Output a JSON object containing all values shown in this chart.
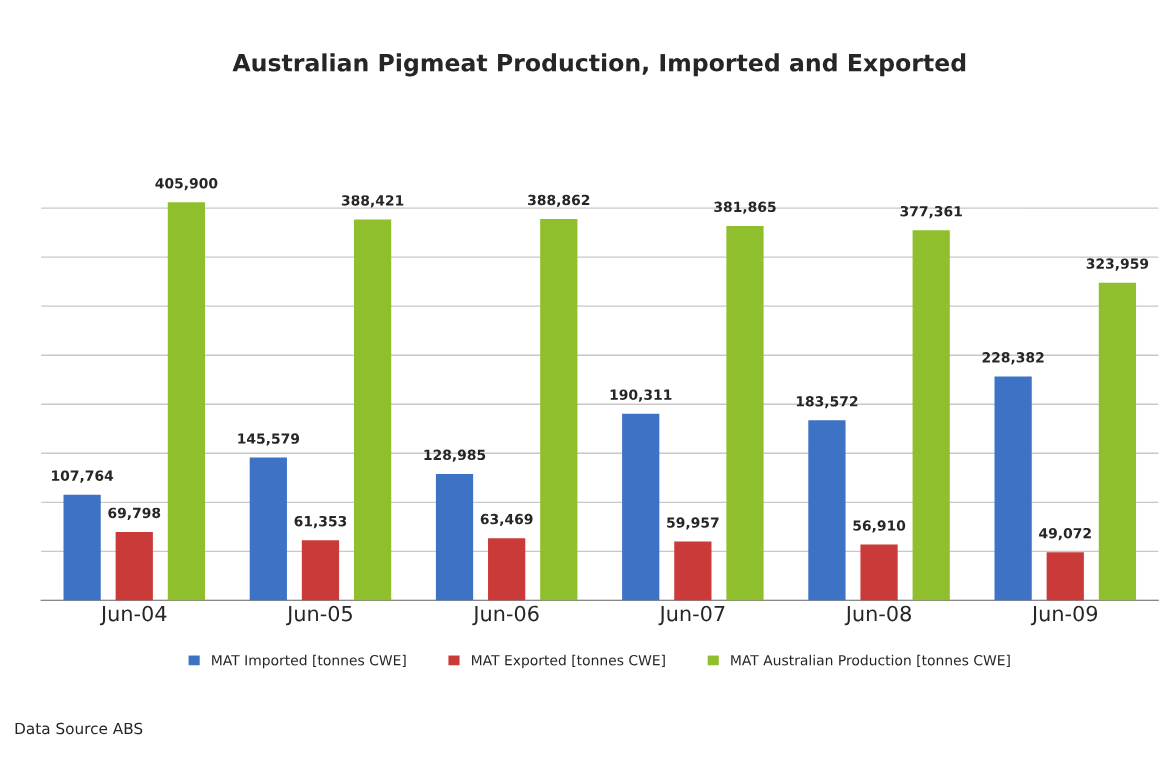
{
  "chart_data": {
    "type": "bar",
    "title": "Australian Pigmeat Production, Imported and Exported",
    "categories": [
      "Jun-04",
      "Jun-05",
      "Jun-06",
      "Jun-07",
      "Jun-08",
      "Jun-09"
    ],
    "series": [
      {
        "name": "MAT Imported [tonnes CWE]",
        "color": "#3d72c4",
        "values": [
          107764,
          145579,
          128985,
          190311,
          183572,
          228382
        ],
        "value_labels": [
          "107,764",
          "145,579",
          "128,985",
          "190,311",
          "183,572",
          "228,382"
        ]
      },
      {
        "name": "MAT Exported [tonnes CWE]",
        "color": "#c93a38",
        "values": [
          69798,
          61353,
          63469,
          59957,
          56910,
          49072
        ],
        "value_labels": [
          "69,798",
          "61,353",
          "63,469",
          "59,957",
          "56,910",
          "49,072"
        ]
      },
      {
        "name": "MAT Australian Production [tonnes CWE]",
        "color": "#8fbf2c",
        "values": [
          405900,
          388421,
          388862,
          381865,
          377361,
          323959
        ],
        "value_labels": [
          "405,900",
          "388,421",
          "388,862",
          "381,865",
          "377,361",
          "323,959"
        ]
      }
    ],
    "grid": "y",
    "legend": "bottom",
    "annotations": [
      "Data Source ABS"
    ]
  }
}
